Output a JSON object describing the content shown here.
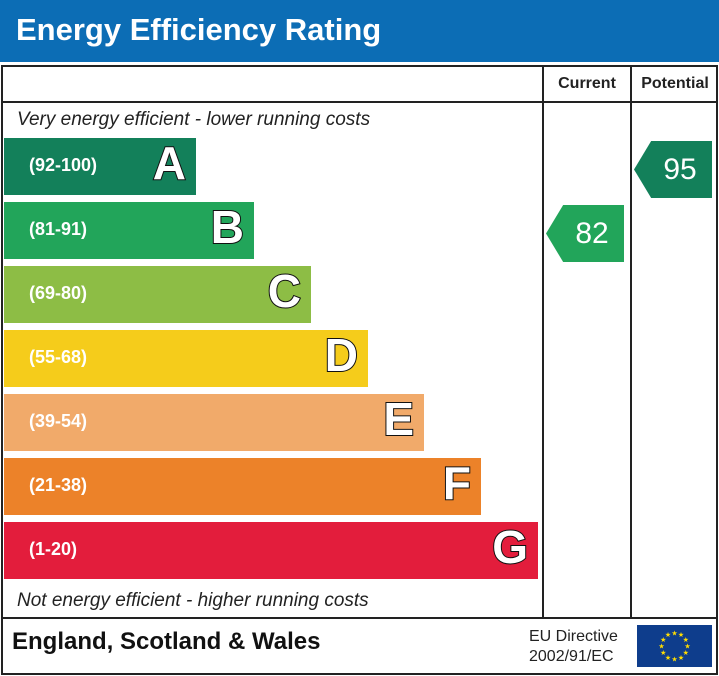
{
  "header": {
    "title": "Energy Efficiency Rating"
  },
  "columns": {
    "current": "Current",
    "potential": "Potential"
  },
  "notes": {
    "top": "Very energy efficient - lower running costs",
    "bottom": "Not energy efficient - higher running costs"
  },
  "chart_data": {
    "type": "bar",
    "bands": [
      {
        "letter": "A",
        "range": "(92-100)",
        "color": "#13805a"
      },
      {
        "letter": "B",
        "range": "(81-91)",
        "color": "#22a55a"
      },
      {
        "letter": "C",
        "range": "(69-80)",
        "color": "#8dbd45"
      },
      {
        "letter": "D",
        "range": "(55-68)",
        "color": "#f5cc1b"
      },
      {
        "letter": "E",
        "range": "(39-54)",
        "color": "#f1aa6a"
      },
      {
        "letter": "F",
        "range": "(21-38)",
        "color": "#ec8229"
      },
      {
        "letter": "G",
        "range": "(1-20)",
        "color": "#e31d3c"
      }
    ],
    "current": {
      "value": 82,
      "band": "B"
    },
    "potential": {
      "value": 95,
      "band": "A"
    }
  },
  "footer": {
    "region": "England, Scotland & Wales",
    "directive_line1": "EU Directive",
    "directive_line2": "2002/91/EC",
    "flag": "eu-flag-icon"
  }
}
